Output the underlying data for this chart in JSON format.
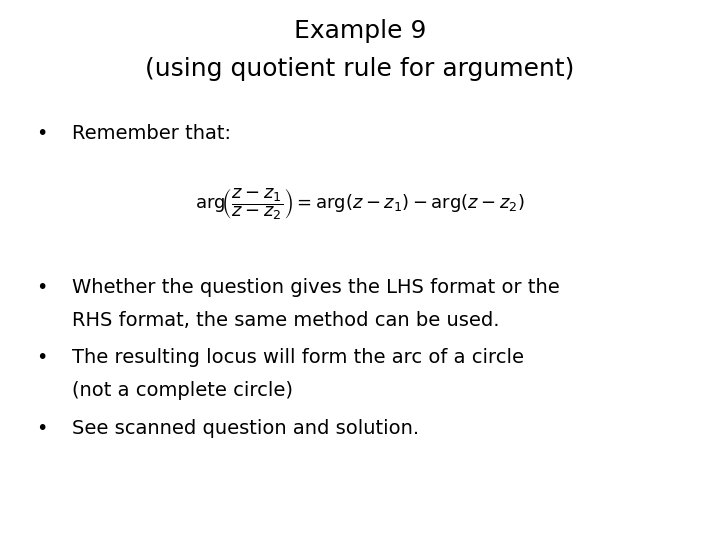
{
  "title_line1": "Example 9",
  "title_line2": "(using quotient rule for argument)",
  "bullet1": "Remember that:",
  "bullet2a": "Whether the question gives the LHS format or the",
  "bullet2b": "RHS format, the same method can be used.",
  "bullet3a": "The resulting locus will form the arc of a circle",
  "bullet3b": "(not a complete circle)",
  "bullet4": "See scanned question and solution.",
  "bg_color": "#ffffff",
  "text_color": "#000000",
  "title_fontsize": 18,
  "body_fontsize": 14,
  "formula_fontsize": 13
}
